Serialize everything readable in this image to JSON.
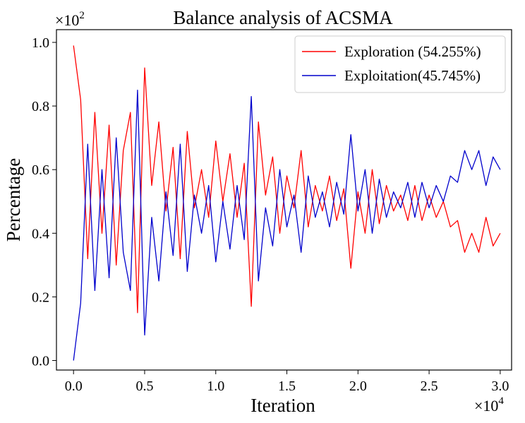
{
  "chart_data": {
    "type": "line",
    "title": "Balance analysis of ACSMA",
    "xlabel": "Iteration",
    "ylabel": "Percentage",
    "x_multiplier_prefix": "×10",
    "x_multiplier_exp": "4",
    "y_multiplier_prefix": "×10",
    "y_multiplier_exp": "2",
    "xlim": [
      -0.12,
      3.08
    ],
    "ylim": [
      -0.03,
      1.04
    ],
    "x_ticks": [
      0.0,
      0.5,
      1.0,
      1.5,
      2.0,
      2.5,
      3.0
    ],
    "x_tick_labels": [
      "0.0",
      "0.5",
      "1.0",
      "1.5",
      "2.0",
      "2.5",
      "3.0"
    ],
    "y_ticks": [
      0.0,
      0.2,
      0.4,
      0.6,
      0.8,
      1.0
    ],
    "y_tick_labels": [
      "0.0",
      "0.2",
      "0.4",
      "0.6",
      "0.8",
      "1.0"
    ],
    "grid": false,
    "legend_position": "top-right",
    "series": [
      {
        "name": "Exploration (54.255%)",
        "color": "#ff0000",
        "x": [
          0.0,
          0.05,
          0.1,
          0.15,
          0.2,
          0.25,
          0.3,
          0.35,
          0.4,
          0.45,
          0.5,
          0.55,
          0.6,
          0.65,
          0.7,
          0.75,
          0.8,
          0.85,
          0.9,
          0.95,
          1.0,
          1.05,
          1.1,
          1.15,
          1.2,
          1.25,
          1.3,
          1.35,
          1.4,
          1.45,
          1.5,
          1.55,
          1.6,
          1.65,
          1.7,
          1.75,
          1.8,
          1.85,
          1.9,
          1.95,
          2.0,
          2.05,
          2.1,
          2.15,
          2.2,
          2.25,
          2.3,
          2.35,
          2.4,
          2.45,
          2.5,
          2.55,
          2.6,
          2.65,
          2.7,
          2.75,
          2.8,
          2.85,
          2.9,
          2.95,
          3.0
        ],
        "y": [
          0.99,
          0.82,
          0.32,
          0.78,
          0.4,
          0.74,
          0.3,
          0.66,
          0.78,
          0.15,
          0.92,
          0.55,
          0.75,
          0.47,
          0.67,
          0.32,
          0.72,
          0.48,
          0.6,
          0.45,
          0.69,
          0.5,
          0.65,
          0.45,
          0.62,
          0.17,
          0.75,
          0.52,
          0.64,
          0.4,
          0.58,
          0.48,
          0.66,
          0.42,
          0.55,
          0.47,
          0.58,
          0.44,
          0.54,
          0.29,
          0.53,
          0.4,
          0.6,
          0.43,
          0.55,
          0.47,
          0.52,
          0.44,
          0.55,
          0.44,
          0.52,
          0.45,
          0.5,
          0.42,
          0.44,
          0.34,
          0.4,
          0.34,
          0.45,
          0.36,
          0.4
        ]
      },
      {
        "name": "Exploitation(45.745%)",
        "color": "#0000cc",
        "x": [
          0.0,
          0.05,
          0.1,
          0.15,
          0.2,
          0.25,
          0.3,
          0.35,
          0.4,
          0.45,
          0.5,
          0.55,
          0.6,
          0.65,
          0.7,
          0.75,
          0.8,
          0.85,
          0.9,
          0.95,
          1.0,
          1.05,
          1.1,
          1.15,
          1.2,
          1.25,
          1.3,
          1.35,
          1.4,
          1.45,
          1.5,
          1.55,
          1.6,
          1.65,
          1.7,
          1.75,
          1.8,
          1.85,
          1.9,
          1.95,
          2.0,
          2.05,
          2.1,
          2.15,
          2.2,
          2.25,
          2.3,
          2.35,
          2.4,
          2.45,
          2.5,
          2.55,
          2.6,
          2.65,
          2.7,
          2.75,
          2.8,
          2.85,
          2.9,
          2.95,
          3.0
        ],
        "y": [
          0.0,
          0.18,
          0.68,
          0.22,
          0.6,
          0.26,
          0.7,
          0.34,
          0.22,
          0.85,
          0.08,
          0.45,
          0.25,
          0.53,
          0.33,
          0.68,
          0.28,
          0.52,
          0.4,
          0.55,
          0.31,
          0.5,
          0.35,
          0.55,
          0.38,
          0.83,
          0.25,
          0.48,
          0.36,
          0.6,
          0.42,
          0.52,
          0.34,
          0.58,
          0.45,
          0.53,
          0.42,
          0.56,
          0.46,
          0.71,
          0.47,
          0.6,
          0.4,
          0.57,
          0.45,
          0.53,
          0.48,
          0.56,
          0.45,
          0.56,
          0.48,
          0.55,
          0.5,
          0.58,
          0.56,
          0.66,
          0.6,
          0.66,
          0.55,
          0.64,
          0.6
        ]
      }
    ]
  }
}
